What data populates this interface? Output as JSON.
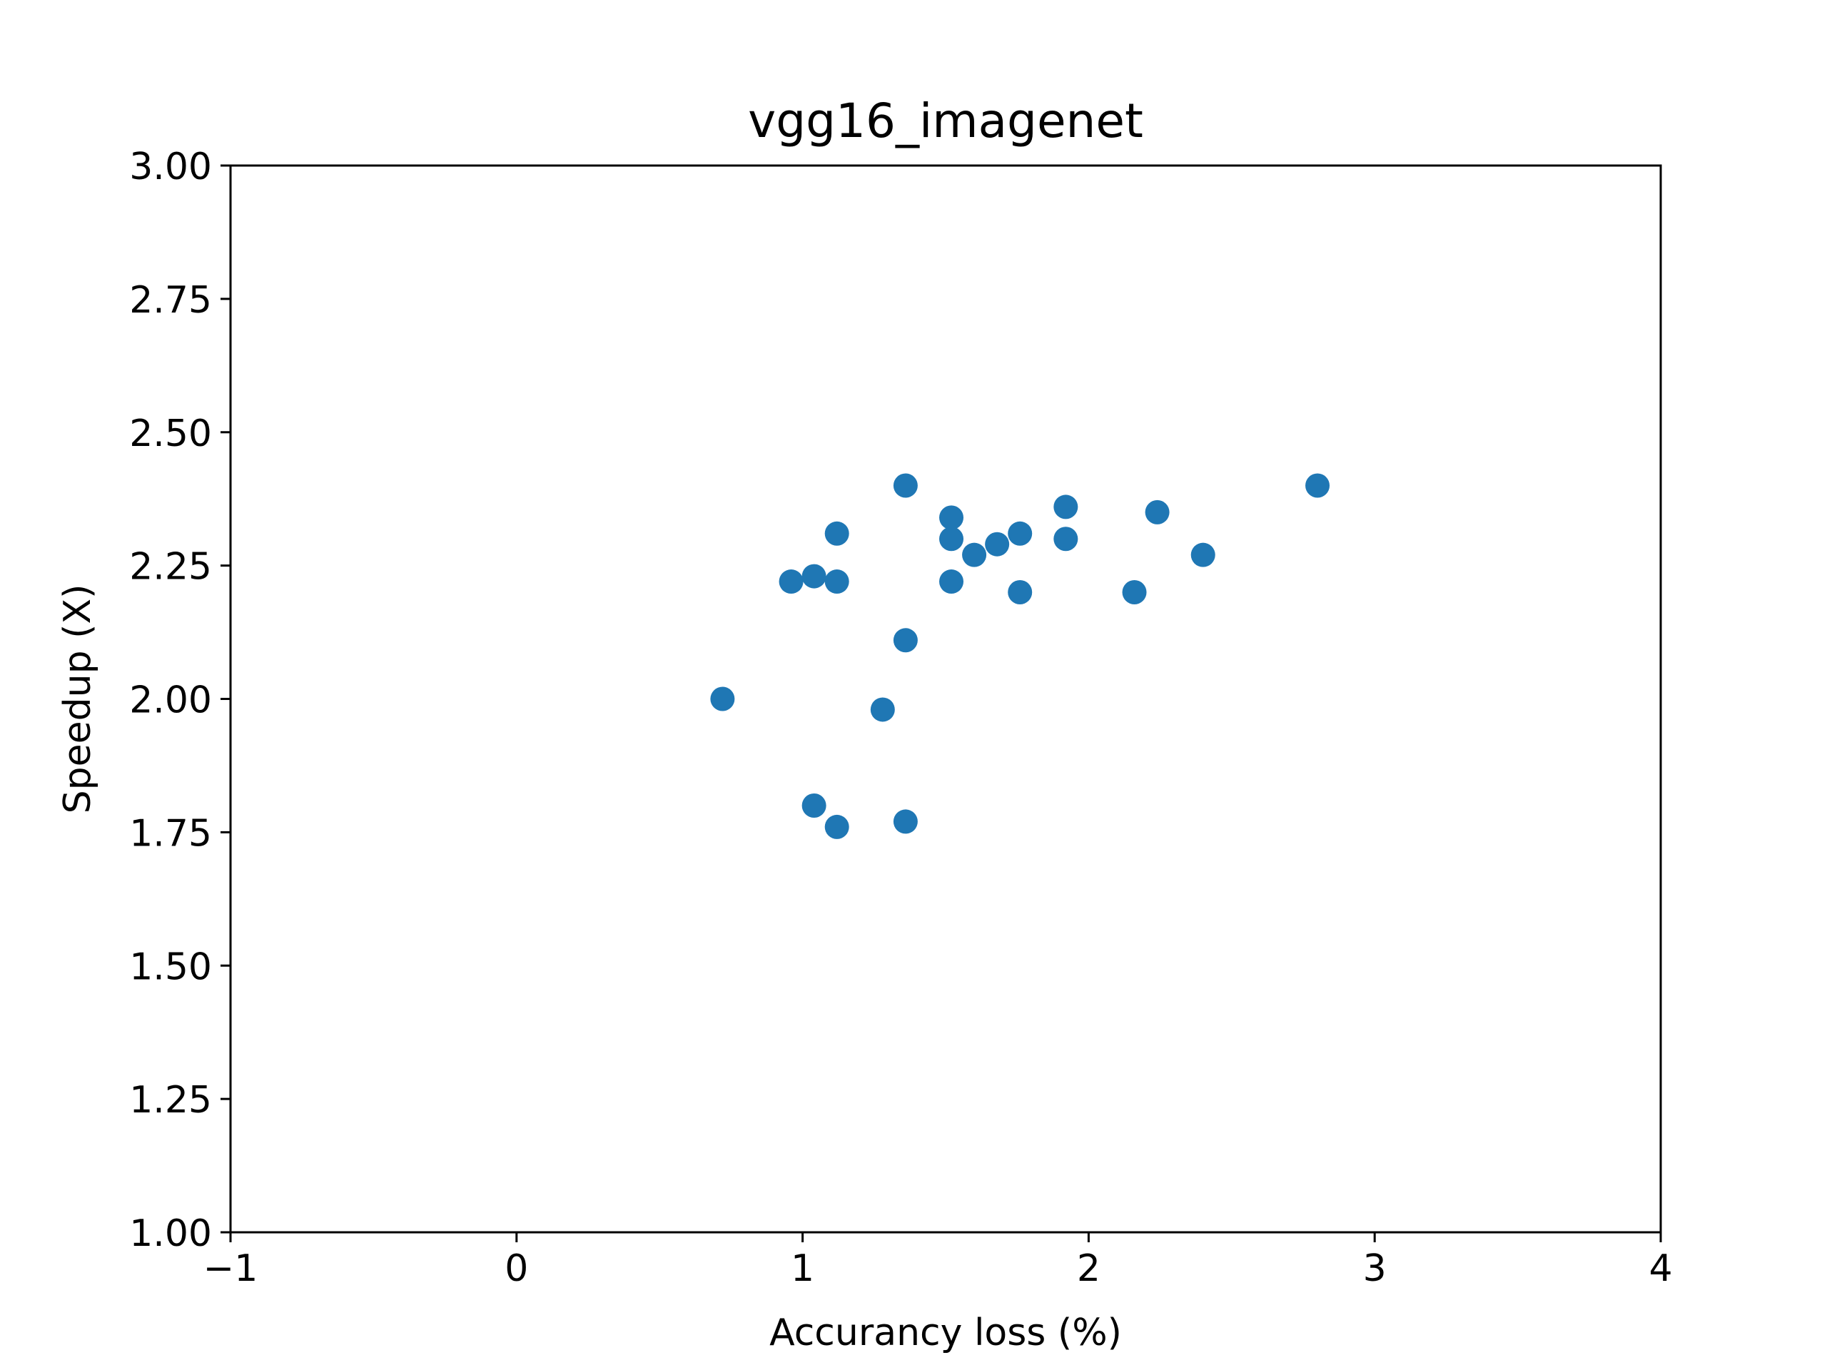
{
  "chart_data": {
    "type": "scatter",
    "title": "vgg16_imagenet",
    "xlabel": "Accurancy loss (%)",
    "ylabel": "Speedup (X)",
    "xlim": [
      -1,
      4
    ],
    "ylim": [
      1.0,
      3.0
    ],
    "xticks": [
      -1,
      0,
      1,
      2,
      3,
      4
    ],
    "xtick_labels": [
      "−1",
      "0",
      "1",
      "2",
      "3",
      "4"
    ],
    "yticks": [
      1.0,
      1.25,
      1.5,
      1.75,
      2.0,
      2.25,
      2.5,
      2.75,
      3.0
    ],
    "ytick_labels": [
      "1.00",
      "1.25",
      "1.50",
      "1.75",
      "2.00",
      "2.25",
      "2.50",
      "2.75",
      "3.00"
    ],
    "grid": false,
    "marker_color": "#1f77b4",
    "points": [
      {
        "x": 0.72,
        "y": 2.0
      },
      {
        "x": 0.96,
        "y": 2.22
      },
      {
        "x": 1.04,
        "y": 2.23
      },
      {
        "x": 1.04,
        "y": 1.8
      },
      {
        "x": 1.12,
        "y": 2.31
      },
      {
        "x": 1.12,
        "y": 2.22
      },
      {
        "x": 1.12,
        "y": 1.76
      },
      {
        "x": 1.28,
        "y": 1.98
      },
      {
        "x": 1.36,
        "y": 2.4
      },
      {
        "x": 1.36,
        "y": 2.11
      },
      {
        "x": 1.36,
        "y": 1.77
      },
      {
        "x": 1.52,
        "y": 2.34
      },
      {
        "x": 1.52,
        "y": 2.3
      },
      {
        "x": 1.52,
        "y": 2.22
      },
      {
        "x": 1.6,
        "y": 2.27
      },
      {
        "x": 1.68,
        "y": 2.29
      },
      {
        "x": 1.76,
        "y": 2.31
      },
      {
        "x": 1.76,
        "y": 2.2
      },
      {
        "x": 1.92,
        "y": 2.36
      },
      {
        "x": 1.92,
        "y": 2.3
      },
      {
        "x": 2.16,
        "y": 2.2
      },
      {
        "x": 2.24,
        "y": 2.35
      },
      {
        "x": 2.4,
        "y": 2.27
      },
      {
        "x": 2.8,
        "y": 2.4
      }
    ]
  }
}
